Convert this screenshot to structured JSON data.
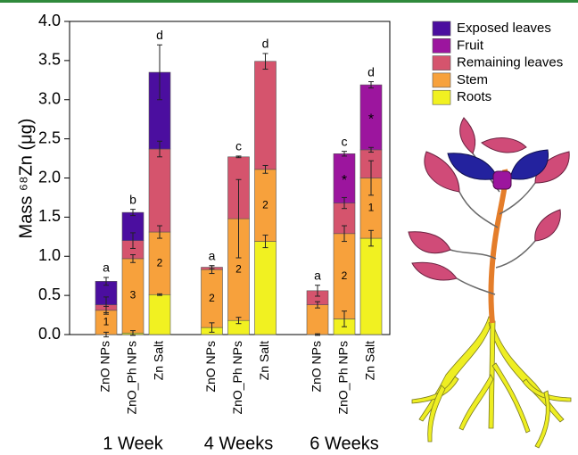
{
  "chart_data": {
    "type": "stacked-bar",
    "ylabel": "Mass ⁶⁸Zn (μg)",
    "categories": [
      "ZnO NPs",
      "ZnO_Ph NPs",
      "Zn Salt",
      "ZnO NPs",
      "ZnO_Ph NPs",
      "Zn Salt",
      "ZnO NPs",
      "ZnO_Ph NPs",
      "Zn Salt"
    ],
    "groups": [
      "1 Week",
      "4 Weeks",
      "6 Weeks"
    ],
    "series": [
      {
        "name": "Exposed leaves",
        "color": "#4b0e9f",
        "values": [
          0.3,
          0.36,
          0.98,
          0,
          0,
          0,
          0,
          0,
          0
        ],
        "errors": [
          0.05,
          0.04,
          0.35,
          null,
          null,
          null,
          null,
          null,
          null
        ]
      },
      {
        "name": "Fruit",
        "color": "#9c159e",
        "values": [
          0,
          0,
          0,
          0,
          0,
          0,
          0,
          0.63,
          0.83
        ],
        "errors": [
          null,
          null,
          null,
          null,
          null,
          null,
          null,
          0.03,
          0.04
        ]
      },
      {
        "name": "Remaining leaves",
        "color": "#d5546d",
        "values": [
          0.07,
          0.23,
          1.06,
          0.03,
          0.79,
          1.38,
          0.18,
          0.39,
          0.36
        ],
        "errors": [
          0.1,
          0.1,
          0.1,
          0.02,
          0.01,
          0.1,
          0.07,
          0.07,
          0.03
        ]
      },
      {
        "name": "Stem",
        "color": "#f7a13c",
        "values": [
          0.31,
          0.95,
          0.8,
          0.74,
          1.3,
          0.92,
          0.38,
          1.09,
          0.77
        ],
        "errors": [
          0.05,
          0.05,
          0.08,
          0.05,
          0.5,
          0.05,
          0.04,
          0.1,
          0.22
        ]
      },
      {
        "name": "Roots",
        "color": "#f1f121",
        "values": [
          0,
          0.02,
          0.51,
          0.09,
          0.18,
          1.19,
          0,
          0.2,
          1.23
        ],
        "errors": [
          0.03,
          0.03,
          0.01,
          0.06,
          0.04,
          0.08,
          0.01,
          0.1,
          0.1
        ]
      }
    ],
    "letters": [
      "a",
      "b",
      "d",
      "a",
      "c",
      "d",
      "a",
      "c",
      "d"
    ],
    "stem_labels": [
      "1",
      "3",
      "2",
      "2",
      "2",
      "2",
      null,
      "2",
      "1"
    ],
    "fruit_marks": [
      null,
      null,
      null,
      null,
      null,
      null,
      null,
      "*",
      "*"
    ],
    "ylim": [
      0,
      4
    ],
    "yticks": [
      {
        "value": 0,
        "label": "0.0"
      },
      {
        "value": 0.5,
        "label": "0.5"
      },
      {
        "value": 1,
        "label": "1.0"
      },
      {
        "value": 1.5,
        "label": "1.5"
      },
      {
        "value": 2,
        "label": "2.0"
      },
      {
        "value": 2.5,
        "label": "2.5"
      },
      {
        "value": 3,
        "label": "3.0"
      },
      {
        "value": 3.5,
        "label": "3.5"
      },
      {
        "value": 4,
        "label": "4.0"
      }
    ],
    "legend": "top-right"
  }
}
